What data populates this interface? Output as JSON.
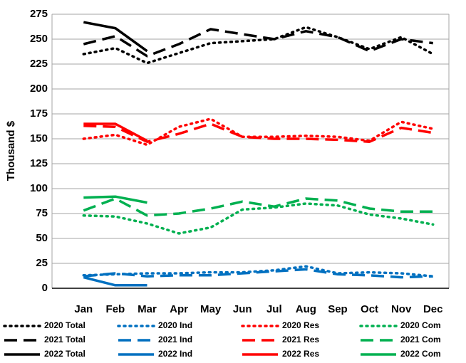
{
  "chart_data": {
    "type": "line",
    "y_label": "Thousand $",
    "categories": [
      "Jan",
      "Feb",
      "Mar",
      "Apr",
      "May",
      "Jun",
      "Jul",
      "Aug",
      "Sep",
      "Oct",
      "Nov",
      "Dec"
    ],
    "ylim": [
      0,
      275
    ],
    "yticks": [
      0,
      25,
      50,
      75,
      100,
      125,
      150,
      175,
      200,
      225,
      250,
      275
    ],
    "grid": true,
    "legend": "bottom",
    "series": [
      {
        "name": "2020 Total",
        "color": "#000000",
        "dash": "dotted",
        "values": [
          235,
          241,
          226,
          236,
          246,
          248,
          250,
          262,
          252,
          240,
          252,
          235
        ]
      },
      {
        "name": "2020 Ind",
        "color": "#0070c0",
        "dash": "dotted",
        "values": [
          13,
          14,
          15,
          15,
          16,
          16,
          18,
          22,
          15,
          16,
          15,
          12
        ]
      },
      {
        "name": "2020 Res",
        "color": "#ff0000",
        "dash": "dotted",
        "values": [
          150,
          154,
          144,
          162,
          170,
          152,
          152,
          153,
          152,
          148,
          167,
          160
        ]
      },
      {
        "name": "2020 Com",
        "color": "#00b050",
        "dash": "dotted",
        "values": [
          73,
          72,
          65,
          55,
          61,
          79,
          81,
          85,
          83,
          74,
          70,
          64
        ]
      },
      {
        "name": "2021 Total",
        "color": "#000000",
        "dash": "dashed",
        "values": [
          245,
          253,
          233,
          245,
          260,
          255,
          250,
          258,
          252,
          238,
          250,
          246
        ]
      },
      {
        "name": "2021 Ind",
        "color": "#0070c0",
        "dash": "dashed",
        "values": [
          12,
          15,
          12,
          13,
          13,
          15,
          17,
          19,
          14,
          13,
          11,
          12
        ]
      },
      {
        "name": "2021 Res",
        "color": "#ff0000",
        "dash": "dashed",
        "values": [
          163,
          162,
          147,
          155,
          165,
          152,
          150,
          150,
          149,
          147,
          161,
          156
        ]
      },
      {
        "name": "2021 Com",
        "color": "#00b050",
        "dash": "dashed",
        "values": [
          78,
          90,
          73,
          75,
          80,
          87,
          82,
          90,
          88,
          80,
          77,
          77
        ]
      },
      {
        "name": "2022 Total",
        "color": "#000000",
        "dash": "solid",
        "values": [
          267,
          261,
          238,
          null,
          null,
          null,
          null,
          null,
          null,
          null,
          null,
          null
        ]
      },
      {
        "name": "2022 Ind",
        "color": "#0070c0",
        "dash": "solid",
        "values": [
          11,
          3,
          3,
          null,
          null,
          null,
          null,
          null,
          null,
          null,
          null,
          null
        ]
      },
      {
        "name": "2022 Res",
        "color": "#ff0000",
        "dash": "solid",
        "values": [
          165,
          165,
          148,
          null,
          null,
          null,
          null,
          null,
          null,
          null,
          null,
          null
        ]
      },
      {
        "name": "2022 Com",
        "color": "#00b050",
        "dash": "solid",
        "values": [
          91,
          92,
          86,
          null,
          null,
          null,
          null,
          null,
          null,
          null,
          null,
          null
        ]
      }
    ]
  }
}
